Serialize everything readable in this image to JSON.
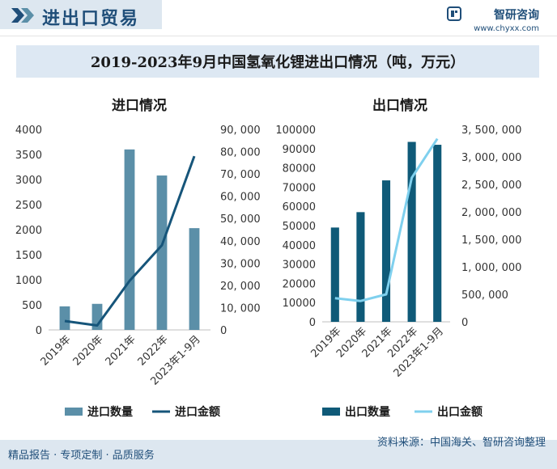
{
  "header": {
    "title": "进出口贸易"
  },
  "brand": {
    "name": "智研咨询",
    "url": "www.chyxx.com"
  },
  "main_title": "2019-2023年9月中国氢氧化锂进出口情况（吨，万元）",
  "footer": {
    "left": "精品报告 · 专项定制 · 品质服务",
    "source": "资料来源：中国海关、智研咨询整理"
  },
  "colors": {
    "import_bar": "#5b8fa8",
    "import_line": "#16557a",
    "export_bar": "#0f5a78",
    "export_line": "#7fd0ee",
    "brand": "#1f4e79"
  },
  "chart_data": [
    {
      "type": "bar",
      "title": "进口情况",
      "categories": [
        "2019年",
        "2020年",
        "2021年",
        "2022年",
        "2023年1-9月"
      ],
      "series": [
        {
          "name": "进口数量",
          "type": "bar",
          "axis": "left",
          "values": [
            470,
            520,
            3600,
            3080,
            2030
          ]
        },
        {
          "name": "进口金额",
          "type": "line",
          "axis": "right",
          "values": [
            4000,
            2000,
            22000,
            38000,
            78000
          ]
        }
      ],
      "ylim": [
        0,
        4000
      ],
      "yticks": [
        0,
        500,
        1000,
        1500,
        2000,
        2500,
        3000,
        3500,
        4000
      ],
      "y2lim": [
        0,
        90000
      ],
      "y2ticks": [
        "0",
        "10, 000",
        "20, 000",
        "30, 000",
        "40, 000",
        "50, 000",
        "60, 000",
        "70, 000",
        "80, 000",
        "90, 000"
      ],
      "legend": "bottom"
    },
    {
      "type": "bar",
      "title": "出口情况",
      "categories": [
        "2019年",
        "2020年",
        "2021年",
        "2022年",
        "2023年1-9月"
      ],
      "series": [
        {
          "name": "出口数量",
          "type": "bar",
          "axis": "left",
          "values": [
            49000,
            57000,
            73500,
            93500,
            92000
          ]
        },
        {
          "name": "出口金额",
          "type": "line",
          "axis": "right",
          "values": [
            430000,
            380000,
            500000,
            2620000,
            3330000
          ]
        }
      ],
      "ylim": [
        0,
        100000
      ],
      "yticks": [
        0,
        10000,
        20000,
        30000,
        40000,
        50000,
        60000,
        70000,
        80000,
        90000,
        100000
      ],
      "y2lim": [
        0,
        3500000
      ],
      "y2ticks": [
        "0",
        "500, 000",
        "1, 000, 000",
        "1, 500, 000",
        "2, 000, 000",
        "2, 500, 000",
        "3, 000, 000",
        "3, 500, 000"
      ],
      "legend": "bottom"
    }
  ]
}
